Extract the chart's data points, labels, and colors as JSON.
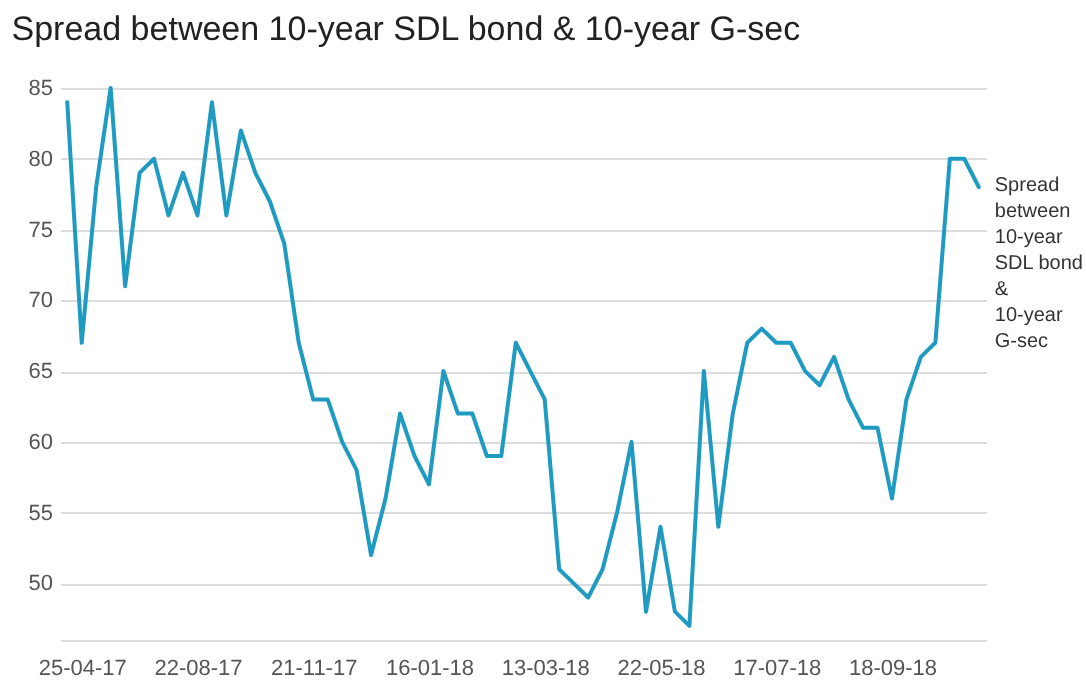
{
  "chart_data": {
    "type": "line",
    "title": "Spread between 10-year SDL bond & 10-year G-sec",
    "categories": [
      null,
      "25-04-17",
      null,
      null,
      null,
      null,
      null,
      null,
      null,
      "22-08-17",
      null,
      null,
      null,
      null,
      null,
      null,
      null,
      "21-11-17",
      null,
      null,
      null,
      null,
      null,
      null,
      null,
      "16-01-18",
      null,
      null,
      null,
      null,
      null,
      null,
      null,
      "13-03-18",
      null,
      null,
      null,
      null,
      null,
      null,
      null,
      "22-05-18",
      null,
      null,
      null,
      null,
      null,
      null,
      null,
      "17-07-18",
      null,
      null,
      null,
      null,
      null,
      null,
      null,
      "18-09-18",
      null,
      null,
      null,
      null,
      null,
      null
    ],
    "series": [
      {
        "name": "Spread between 10-year SDL bond & 10-year G-sec",
        "color": "#1f9bc2",
        "values": [
          84,
          67,
          78,
          85,
          71,
          79,
          80,
          76,
          79,
          76,
          84,
          76,
          82,
          79,
          77,
          74,
          67,
          63,
          63,
          60,
          58,
          52,
          56,
          62,
          59,
          57,
          65,
          62,
          62,
          59,
          59,
          67,
          65,
          63,
          51,
          50,
          49,
          51,
          55,
          60,
          48,
          54,
          48,
          47,
          65,
          54,
          62,
          67,
          68,
          67,
          67,
          65,
          64,
          66,
          63,
          61,
          61,
          56,
          63,
          66,
          67,
          80,
          80,
          78
        ]
      }
    ],
    "ylim": [
      46,
      85
    ],
    "yticks": [
      50,
      55,
      60,
      65,
      70,
      75,
      80,
      85
    ],
    "grid": "y",
    "marker": "none",
    "line_style": "solid"
  }
}
